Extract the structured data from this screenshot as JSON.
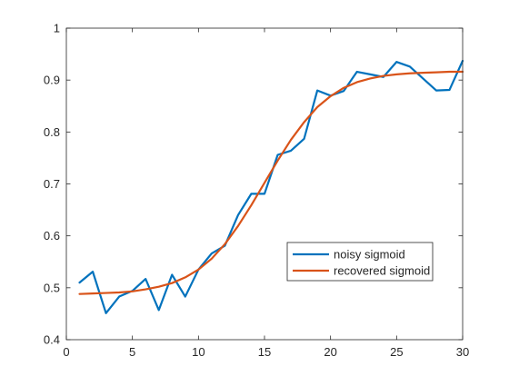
{
  "chart_data": {
    "type": "line",
    "title": "",
    "xlabel": "",
    "ylabel": "",
    "xlim": [
      0,
      30
    ],
    "ylim": [
      0.4,
      1
    ],
    "xticks": [
      0,
      5,
      10,
      15,
      20,
      25,
      30
    ],
    "xtick_labels": [
      "0",
      "5",
      "10",
      "15",
      "20",
      "25",
      "30"
    ],
    "yticks": [
      0.4,
      0.5,
      0.6,
      0.7,
      0.8,
      0.9,
      1.0
    ],
    "ytick_labels": [
      "0.4",
      "0.5",
      "0.6",
      "0.7",
      "0.8",
      "0.9",
      "1"
    ],
    "grid": false,
    "legend_position": "lower-right",
    "x": [
      1,
      2,
      3,
      4,
      5,
      6,
      7,
      8,
      9,
      10,
      11,
      12,
      13,
      14,
      15,
      16,
      17,
      18,
      19,
      20,
      21,
      22,
      23,
      24,
      25,
      26,
      27,
      28,
      29,
      30
    ],
    "series": [
      {
        "name": "noisy sigmoid",
        "color": "#0072BD",
        "values": [
          0.51,
          0.531,
          0.451,
          0.483,
          0.494,
          0.517,
          0.457,
          0.525,
          0.483,
          0.535,
          0.566,
          0.581,
          0.64,
          0.681,
          0.681,
          0.756,
          0.764,
          0.787,
          0.88,
          0.87,
          0.879,
          0.916,
          0.911,
          0.906,
          0.935,
          0.926,
          0.903,
          0.88,
          0.881,
          0.937
        ]
      },
      {
        "name": "recovered sigmoid",
        "color": "#D95319",
        "values": [
          0.488,
          0.489,
          0.49,
          0.491,
          0.493,
          0.497,
          0.502,
          0.509,
          0.52,
          0.535,
          0.556,
          0.584,
          0.619,
          0.659,
          0.702,
          0.745,
          0.785,
          0.819,
          0.848,
          0.869,
          0.885,
          0.896,
          0.903,
          0.908,
          0.911,
          0.913,
          0.914,
          0.915,
          0.916,
          0.916
        ]
      }
    ]
  }
}
